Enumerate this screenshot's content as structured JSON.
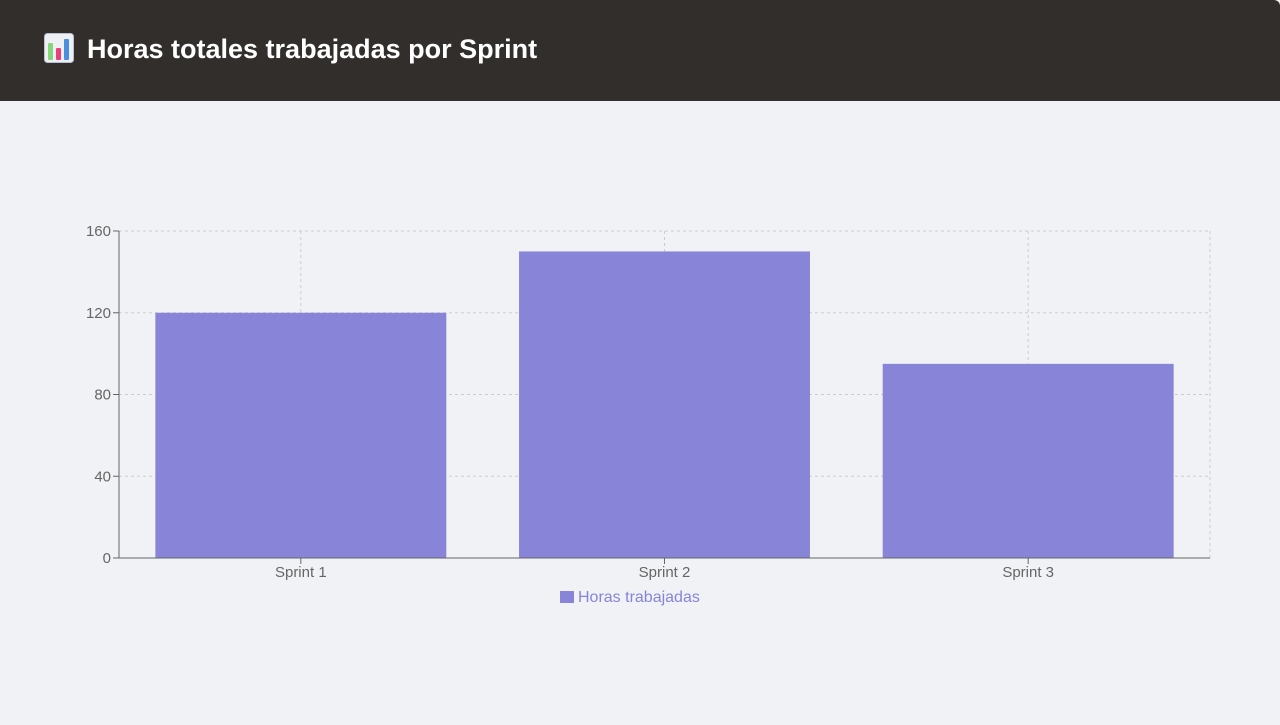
{
  "header": {
    "title": "Horas totales trabajadas por Sprint",
    "icon": "bar-chart-icon"
  },
  "colors": {
    "header_bg": "#322e2b",
    "background": "#f0f2f5",
    "bar": "#8884d8",
    "axis": "#666666",
    "grid": "#cccccc"
  },
  "chart_data": {
    "type": "bar",
    "categories": [
      "Sprint 1",
      "Sprint 2",
      "Sprint 3"
    ],
    "series": [
      {
        "name": "Horas trabajadas",
        "values": [
          120,
          150,
          95
        ]
      }
    ],
    "ylim": [
      0,
      160
    ],
    "yticks": [
      0,
      40,
      80,
      120,
      160
    ],
    "grid": true,
    "legend": "bottom"
  }
}
